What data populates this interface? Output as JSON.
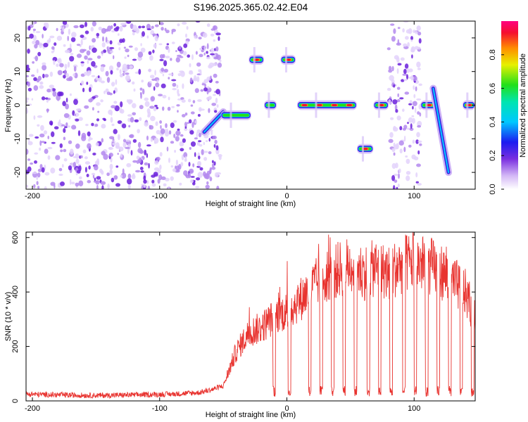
{
  "figure_title": "S196.2025.365.02.42.E04",
  "colors": {
    "signal_purple": "#7a2fe0",
    "signal_light": "#c9a8f5",
    "snr_line": "#e8332f",
    "frame": "#000000"
  },
  "chart_data": [
    {
      "type": "heatmap",
      "title": "",
      "xlabel": "Height of straight line (km)",
      "ylabel": "Frequency (Hz)",
      "xlim": [
        -205,
        148
      ],
      "ylim": [
        -25,
        25
      ],
      "x_ticks": [
        -200,
        -100,
        0,
        100
      ],
      "y_ticks": [
        -20,
        -10,
        0,
        10,
        20
      ],
      "colorbar": {
        "label": "Normalized spectral amplitude",
        "range": [
          0.0,
          1.0
        ],
        "ticks": [
          0.0,
          0.2,
          0.4,
          0.6,
          0.8
        ],
        "tick_labels": [
          "0.0",
          "0.2",
          "0.4",
          "0.6",
          "0.8"
        ]
      },
      "features": [
        {
          "x_start": -205,
          "x_end": -52,
          "freq_min": -25,
          "freq_max": 25,
          "amplitude": 0.1,
          "kind": "noise"
        },
        {
          "x_start": -65,
          "x_end": -50,
          "freq_start": -8,
          "freq_end": -2,
          "amplitude": 0.4,
          "kind": "streak"
        },
        {
          "x_start": -52,
          "x_end": -28,
          "freq": -3,
          "amplitude": 0.45,
          "kind": "band"
        },
        {
          "x_start": -30,
          "x_end": -18,
          "freq": 13.5,
          "amplitude": 0.75,
          "kind": "band"
        },
        {
          "x_start": -18,
          "x_end": -8,
          "freq": 0,
          "amplitude": 0.5,
          "kind": "band"
        },
        {
          "x_start": -5,
          "x_end": 7,
          "freq": 13.5,
          "amplitude": 0.6,
          "kind": "band"
        },
        {
          "x_start": 8,
          "x_end": 55,
          "freq": 0,
          "amplitude": 0.95,
          "kind": "band"
        },
        {
          "x_start": 55,
          "x_end": 68,
          "freq": -13,
          "amplitude": 0.95,
          "kind": "band"
        },
        {
          "x_start": 68,
          "x_end": 80,
          "freq": 0,
          "amplitude": 0.8,
          "kind": "band"
        },
        {
          "x_start": 80,
          "x_end": 105,
          "freq_min": -25,
          "freq_max": 25,
          "amplitude": 0.1,
          "kind": "noise"
        },
        {
          "x_start": 105,
          "x_end": 118,
          "freq": 0,
          "amplitude": 0.9,
          "kind": "band"
        },
        {
          "x_start": 115,
          "x_end": 127,
          "freq_start": 5,
          "freq_end": -20,
          "amplitude": 0.5,
          "kind": "streak"
        },
        {
          "x_start": 138,
          "x_end": 148,
          "freq": 0,
          "amplitude": 0.9,
          "kind": "band"
        }
      ]
    },
    {
      "type": "line",
      "title": "",
      "xlabel": "Height of straight line (km)",
      "ylabel": "SNR (10 * v/v)",
      "xlim": [
        -205,
        148
      ],
      "ylim": [
        0,
        620
      ],
      "x_ticks": [
        -200,
        -100,
        0,
        100
      ],
      "y_ticks": [
        0,
        200,
        400,
        600
      ],
      "series": [
        {
          "name": "SNR",
          "x": [
            -205,
            -180,
            -150,
            -120,
            -90,
            -70,
            -60,
            -50,
            -40,
            -30,
            -20,
            -10,
            0,
            10,
            20,
            30,
            40,
            50,
            60,
            70,
            80,
            90,
            100,
            110,
            120,
            130,
            140,
            148
          ],
          "values": [
            25,
            22,
            20,
            22,
            25,
            30,
            40,
            55,
            180,
            250,
            270,
            310,
            330,
            370,
            420,
            460,
            480,
            500,
            470,
            490,
            470,
            500,
            510,
            500,
            480,
            440,
            400,
            300
          ]
        }
      ],
      "dropouts_x": [
        -10,
        2,
        18,
        27,
        36,
        45,
        54,
        64,
        73,
        82,
        92,
        101,
        110,
        119,
        128,
        137,
        146
      ]
    }
  ]
}
